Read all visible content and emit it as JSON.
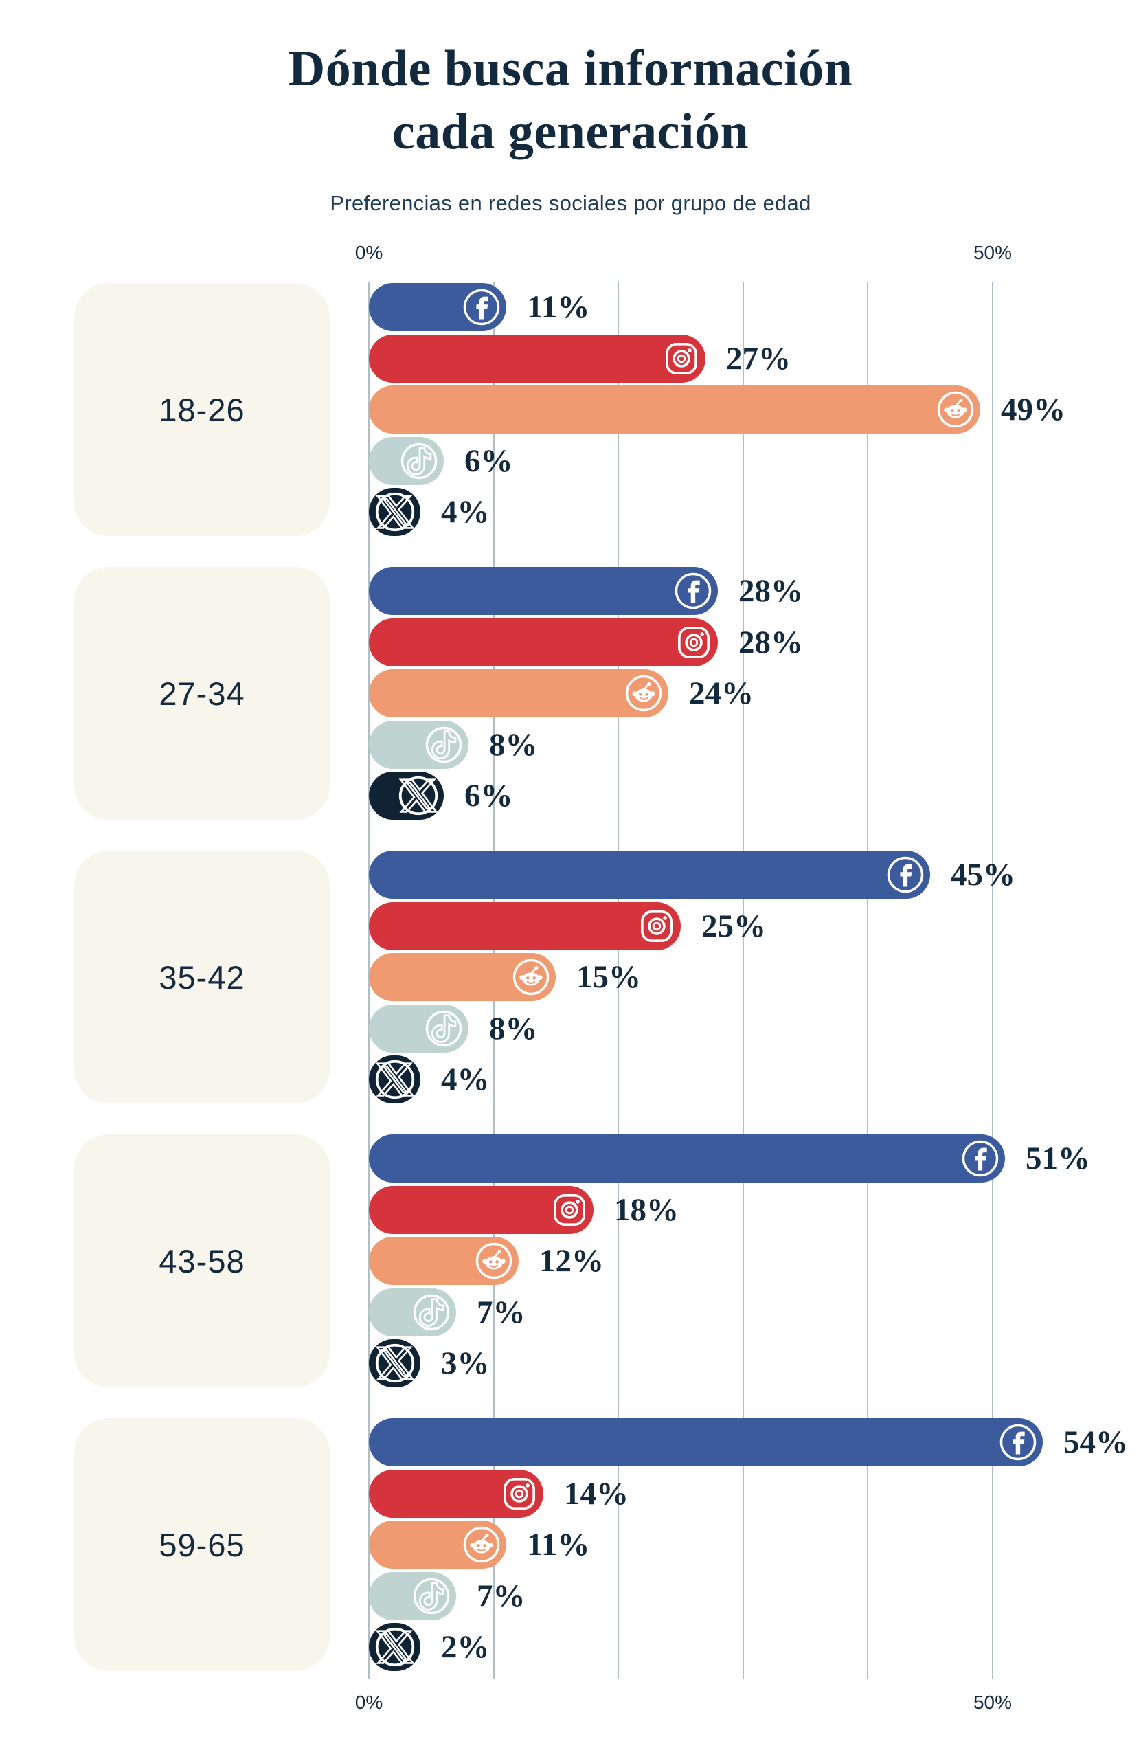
{
  "title_line1": "Dónde busca información",
  "title_line2": "cada generación",
  "subtitle": "Preferencias en redes sociales por grupo de edad",
  "axis": {
    "top_left": "0%",
    "top_right": "50%",
    "bottom_left": "0%",
    "bottom_right": "50%"
  },
  "colors": {
    "background": "#ffffff",
    "text": "#13293d",
    "subtitle_text": "#1e3c55",
    "grid": "#b0bec8",
    "label_box": "#f8f5ed"
  },
  "chart_data": {
    "type": "bar",
    "orientation": "horizontal",
    "unit": "%",
    "xlim": [
      0,
      50
    ],
    "gridline_step": 10,
    "axis_tick_labels": [
      "0%",
      "50%"
    ],
    "grid": true,
    "legend": false,
    "value_labels": "outside-right",
    "categories": [
      "18-26",
      "27-34",
      "35-42",
      "43-58",
      "59-65"
    ],
    "series": [
      {
        "id": "facebook",
        "name": "Facebook",
        "icon": "facebook-icon",
        "color": "#3c5b9c",
        "values": [
          11,
          28,
          45,
          51,
          54
        ]
      },
      {
        "id": "instagram",
        "name": "Instagram",
        "icon": "instagram-icon",
        "color": "#d5343c",
        "values": [
          27,
          28,
          25,
          18,
          14
        ]
      },
      {
        "id": "reddit",
        "name": "Reddit",
        "icon": "reddit-icon",
        "color": "#f09a71",
        "values": [
          49,
          24,
          15,
          12,
          11
        ]
      },
      {
        "id": "tiktok",
        "name": "TikTok",
        "icon": "tiktok-icon",
        "color": "#bfd4d0",
        "values": [
          6,
          8,
          8,
          7,
          7
        ]
      },
      {
        "id": "x",
        "name": "X",
        "icon": "x-icon",
        "color": "#102335",
        "values": [
          4,
          6,
          4,
          3,
          2
        ]
      }
    ]
  }
}
